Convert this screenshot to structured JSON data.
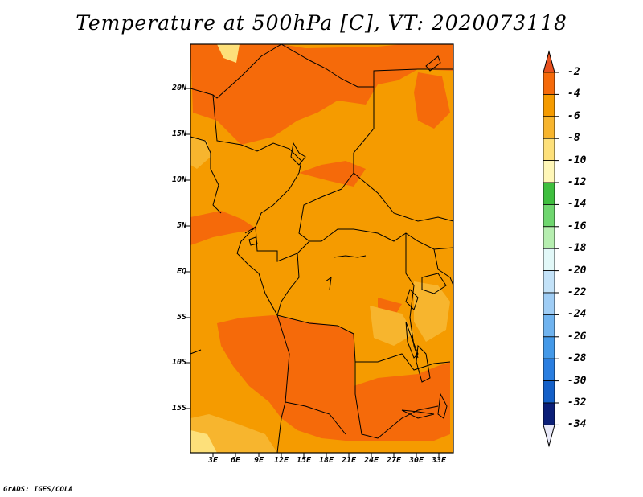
{
  "title": "Temperature at 500hPa [C], VT: 2020073118",
  "footer": "GrADS: IGES/COLA",
  "lat_labels": [
    "20N",
    "15N",
    "10N",
    "5N",
    "EQ",
    "5S",
    "10S",
    "15S"
  ],
  "lon_labels": [
    "3E",
    "6E",
    "9E",
    "12E",
    "15E",
    "18E",
    "21E",
    "24E",
    "27E",
    "30E",
    "33E"
  ],
  "colorbar": {
    "levels": [
      "-2",
      "-4",
      "-6",
      "-8",
      "-10",
      "-12",
      "-14",
      "-16",
      "-18",
      "-20",
      "-22",
      "-24",
      "-26",
      "-28",
      "-30",
      "-32",
      "-34"
    ],
    "colors": [
      "#e8501e",
      "#f56a0a",
      "#f59b00",
      "#f7b52e",
      "#fde07a",
      "#fff7b8",
      "#3fbf3f",
      "#6fd66f",
      "#b6eeb0",
      "#e2f8f8",
      "#c3e2f8",
      "#9fcdf5",
      "#6fb3ef",
      "#4499e8",
      "#2a7ee0",
      "#1460c8",
      "#0b1f78",
      "#e8e8f8"
    ]
  },
  "map_colors": {
    "warm": "#f56a0a",
    "base": "#f59b00",
    "cool": "#f7b52e",
    "pale": "#fde07a",
    "border": "#000000"
  }
}
